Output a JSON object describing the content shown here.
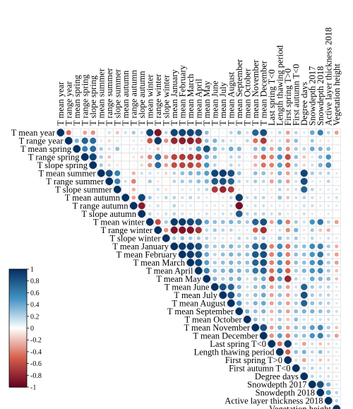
{
  "chart_data": {
    "type": "heatmap",
    "variables": [
      "T mean year",
      "T range year",
      "T mean spring",
      "T range spring",
      "T slope spring",
      "T mean summer",
      "T range summer",
      "T slope summer",
      "T mean autumn",
      "T range autumn",
      "T slope autumn",
      "T mean winter",
      "T range winter",
      "T slope winter",
      "T mean January",
      "T mean February",
      "T mean March",
      "T mean April",
      "T mean May",
      "T mean June",
      "T mean July",
      "T mean August",
      "T mean September",
      "T mean October",
      "T mean November",
      "T mean December",
      "Last spring T<0",
      "Length thawing period",
      "First spring T>0",
      "First autumn T<0",
      "Degree days",
      "Snowdepth 2017",
      "Snowdepth 2018",
      "Active layer thickness 2018",
      "Vegetation height"
    ],
    "legend": {
      "ticks": [
        "1",
        "0.8",
        "0.6",
        "0.4",
        "0.2",
        "0",
        "-0.2",
        "-0.4",
        "-0.6",
        "-0.8",
        "-1"
      ],
      "range": [
        -1,
        1
      ]
    },
    "matrix_encoding": "upper triangle; each row lists correlations from the diagonal (1) to the last variable",
    "rows": [
      [
        1,
        -0.45,
        0.05,
        -0.3,
        -0.35,
        0.05,
        0.15,
        -0.2,
        0.15,
        0.25,
        0.15,
        0.9,
        -0.9,
        0.2,
        0.9,
        0.9,
        0.9,
        0.85,
        0.3,
        0.05,
        0.05,
        0.2,
        0.3,
        0.15,
        0.75,
        0.85,
        0.1,
        0.2,
        -0.3,
        0.2,
        0.1,
        0.4,
        0.6,
        0.2,
        -0.3
      ],
      [
        1,
        0.35,
        0.75,
        0.7,
        0.1,
        -0.15,
        0.1,
        0.05,
        0.1,
        -0.1,
        -0.55,
        0.95,
        -0.35,
        -0.8,
        -0.85,
        -0.85,
        -0.75,
        0.3,
        0.35,
        0.2,
        0.15,
        -0.05,
        0.2,
        -0.45,
        -0.7,
        -0.15,
        0.15,
        -0.3,
        0.3,
        -0.05,
        0.25,
        -0.1,
        -0.1
      ],
      [
        1,
        0.6,
        0.7,
        0.25,
        0.15,
        0.3,
        0.05,
        0.1,
        0.1,
        0.1,
        -0.2,
        0.05,
        0.1,
        0.15,
        0.2,
        0.5,
        0.85,
        0.35,
        0.2,
        0.4,
        0.35,
        0.05,
        0.3,
        0.4,
        -0.3,
        0.35,
        -0.35,
        0.25,
        0.2,
        0.4,
        0.35,
        0.3
      ],
      [
        1,
        0.9,
        0.25,
        -0.2,
        -0.05,
        -0.05,
        -0.1,
        -0.2,
        -0.4,
        0.7,
        -0.35,
        -0.65,
        -0.7,
        -0.7,
        -0.7,
        0.4,
        0.3,
        0.05,
        0.2,
        0.2,
        0.05,
        -0.3,
        -0.5,
        -0.4,
        0.5,
        -0.6,
        0.3,
        -0.2,
        0.1,
        0.3,
        0.5
      ],
      [
        1,
        0.25,
        -0.15,
        -0.1,
        0.05,
        -0.05,
        -0.15,
        -0.35,
        0.7,
        -0.3,
        -0.6,
        -0.65,
        -0.65,
        -0.55,
        0.5,
        0.2,
        0.05,
        0.2,
        0.15,
        0.05,
        -0.25,
        -0.45,
        -0.4,
        0.45,
        -0.5,
        0.25,
        -0.15,
        0.15,
        0.35,
        0.55
      ],
      [
        1,
        0.85,
        0.6,
        0.05,
        -0.25,
        0.15,
        0.15,
        0.1,
        -0.15,
        0.2,
        0.3,
        0.35,
        0.35,
        0.45,
        0.9,
        0.95,
        0.85,
        0.3,
        0.05,
        0.3,
        0.3,
        -0.2,
        0.35,
        -0.3,
        0.2,
        0.9,
        0.25,
        0.2,
        0.2,
        0.1
      ],
      [
        1,
        0.6,
        0.15,
        -0.4,
        0.05,
        0.25,
        -0.1,
        -0.05,
        0.2,
        0.25,
        0.25,
        0.3,
        0.35,
        0.8,
        0.85,
        0.75,
        0.2,
        0.15,
        0.25,
        0.2,
        -0.3,
        0.3,
        -0.3,
        0.15,
        0.85,
        0.1,
        0.1,
        0.2,
        0.05
      ],
      [
        1,
        0.05,
        -0.25,
        -0.05,
        0.05,
        0.15,
        -0.1,
        0.05,
        0.1,
        0.1,
        0.15,
        0.2,
        -0.7,
        -0.8,
        -0.7,
        -0.1,
        0.05,
        0.1,
        0.1,
        -0.1,
        0.2,
        -0.15,
        0.15,
        0.75,
        0.2,
        0.1,
        0.1,
        0.1
      ],
      [
        1,
        -0.3,
        0.9,
        0.25,
        0.1,
        0.2,
        0.2,
        0.15,
        0.2,
        0.15,
        0.1,
        0.05,
        0.1,
        0.2,
        0.95,
        0.15,
        0.2,
        0.2,
        -0.1,
        0.3,
        -0.2,
        0.15,
        0.2,
        0.15,
        0.1,
        0.1,
        0.15
      ],
      [
        1,
        -0.85,
        0.1,
        0.15,
        0.05,
        0.2,
        0.1,
        0.1,
        0.05,
        0.1,
        0.1,
        0.1,
        0.15,
        -0.95,
        0.1,
        0.15,
        0.15,
        0.1,
        0.1,
        0.1,
        0.1,
        0.15,
        0.15,
        0.1,
        0.1,
        0.1
      ],
      [
        1,
        0.2,
        0.1,
        0.15,
        0.2,
        0.15,
        0.1,
        0.1,
        0.15,
        0.1,
        0.15,
        0.15,
        0.8,
        0.2,
        0.2,
        0.2,
        0.15,
        0.2,
        0.1,
        0.1,
        0.15,
        0.1,
        0.05,
        0.1
      ],
      [
        1,
        -0.6,
        0.25,
        0.95,
        0.95,
        0.9,
        0.8,
        0.4,
        0.3,
        0.3,
        0.35,
        0.3,
        0.25,
        0.75,
        0.85,
        -0.3,
        0.5,
        -0.4,
        0.25,
        0.15,
        0.5,
        0.65,
        0.2,
        -0.3
      ],
      [
        1,
        -0.35,
        -0.9,
        -0.9,
        -0.9,
        -0.75,
        0.2,
        0.25,
        0.2,
        0.2,
        0.1,
        0.1,
        -0.5,
        -0.75,
        -0.1,
        0.15,
        -0.35,
        0.35,
        -0.1,
        0.25,
        -0.2,
        -0.25
      ],
      [
        1,
        0.25,
        0.3,
        0.25,
        0.25,
        0.2,
        0.15,
        0.1,
        0.1,
        0.2,
        0.15,
        0.25,
        0.25,
        0.1,
        0.3,
        0.2,
        0.25,
        0.1,
        0.2,
        0.1,
        0.15,
        0.1
      ],
      [
        1,
        0.95,
        0.95,
        0.85,
        0.35,
        0.25,
        0.3,
        0.35,
        0.25,
        0.3,
        0.75,
        0.85,
        -0.4,
        0.55,
        -0.45,
        0.3,
        0.3,
        0.55,
        0.6,
        0.25,
        -0.25
      ],
      [
        1,
        0.95,
        0.85,
        0.4,
        0.2,
        0.3,
        0.35,
        0.3,
        0.3,
        0.8,
        0.85,
        -0.4,
        0.5,
        -0.4,
        0.3,
        0.3,
        0.5,
        0.65,
        0.2,
        -0.3
      ],
      [
        1,
        0.9,
        0.45,
        0.25,
        0.3,
        0.35,
        0.3,
        0.3,
        0.75,
        0.85,
        -0.4,
        0.5,
        -0.45,
        0.3,
        0.3,
        0.5,
        0.6,
        0.25,
        -0.3
      ],
      [
        1,
        0.6,
        0.3,
        0.35,
        0.4,
        0.35,
        0.3,
        0.65,
        0.75,
        -0.45,
        0.55,
        -0.5,
        0.25,
        0.35,
        0.5,
        0.55,
        0.25,
        -0.2
      ],
      [
        1,
        0.35,
        0.25,
        0.35,
        0.35,
        0.15,
        0.3,
        0.4,
        -0.6,
        0.45,
        -0.8,
        0.2,
        0.15,
        0.4,
        0.35,
        0.3,
        -0.2
      ],
      [
        1,
        0.85,
        0.75,
        0.35,
        0.15,
        0.3,
        0.4,
        -0.3,
        0.3,
        -0.3,
        0.15,
        0.75,
        0.25,
        0.2,
        0.2,
        0.1
      ],
      [
        1,
        0.85,
        0.35,
        0.2,
        0.3,
        0.4,
        -0.3,
        0.3,
        -0.3,
        0.2,
        0.85,
        0.25,
        0.2,
        0.2,
        0.1
      ],
      [
        1,
        0.5,
        0.2,
        0.35,
        0.4,
        -0.3,
        0.3,
        -0.3,
        0.25,
        0.75,
        0.3,
        0.25,
        0.2,
        0.1
      ],
      [
        1,
        0.35,
        0.3,
        0.35,
        -0.25,
        0.3,
        -0.3,
        0.3,
        0.35,
        0.35,
        0.3,
        0.25,
        0.15
      ],
      [
        1,
        0.3,
        0.2,
        -0.2,
        0.25,
        -0.2,
        0.3,
        0.15,
        0.15,
        0.15,
        0.15,
        0.1
      ],
      [
        1,
        0.85,
        -0.3,
        0.35,
        -0.3,
        0.3,
        0.3,
        0.45,
        0.55,
        0.25,
        -0.2
      ],
      [
        1,
        -0.35,
        0.45,
        -0.4,
        0.3,
        0.3,
        0.5,
        0.6,
        0.25,
        -0.3
      ],
      [
        1,
        -0.45,
        0.95,
        0.15,
        -0.3,
        0.15,
        -0.2,
        -0.15,
        0.1
      ],
      [
        1,
        -0.5,
        0.3,
        0.35,
        0.2,
        0.3,
        0.15,
        0.1
      ],
      [
        1,
        0.15,
        -0.3,
        0.15,
        -0.2,
        -0.15,
        0.1
      ],
      [
        1,
        0.2,
        0.2,
        0.15,
        0.15,
        0.1
      ],
      [
        1,
        0.2,
        0.15,
        0.15,
        0.1
      ],
      [
        1,
        0.85,
        0.35,
        0.1
      ],
      [
        1,
        0.45,
        0.2
      ],
      [
        1,
        0.2
      ],
      [
        1
      ]
    ]
  },
  "colors": {
    "neg_strong": "#67001F",
    "neg_mid": "#D6604D",
    "neutral": "#FFFFFF",
    "pos_mid": "#4393C3",
    "pos_strong": "#053061",
    "grid": "#DDDDDD"
  }
}
